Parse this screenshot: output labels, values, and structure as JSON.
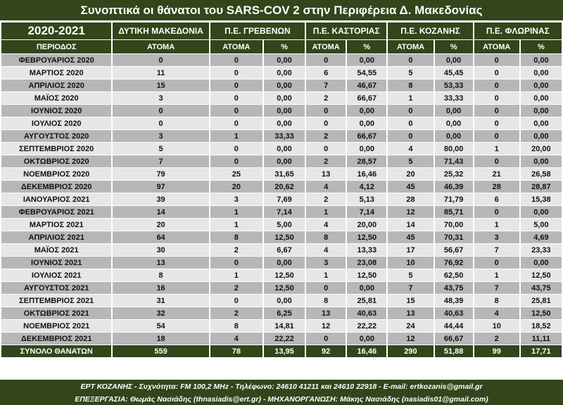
{
  "title": "Συνοπτικά οι θάνατοι του SARS-COV 2 στην Περιφέρεια Δ. Μακεδονίας",
  "header": {
    "year": "2020-2021",
    "regions": [
      "ΔΥΤΙΚΗ ΜΑΚΕΔΟΝΙΑ",
      "Π.Ε. ΓΡΕΒΕΝΩΝ",
      "Π.Ε. ΚΑΣΤΟΡΙΑΣ",
      "Π.Ε. ΚΟΖΑΝΗΣ",
      "Π.Ε. ΦΛΩΡΙΝΑΣ"
    ],
    "period_label": "ΠΕΡΙΟΔΟΣ",
    "people_label": "ΑΤΟΜΑ",
    "percent_label": "%"
  },
  "rows": [
    {
      "period": "ΦΕΒΡΟΥΑΡΙΟΣ 2020",
      "values": [
        "0",
        "0",
        "0,00",
        "0",
        "0,00",
        "0",
        "0,00",
        "0",
        "0,00"
      ]
    },
    {
      "period": "ΜΑΡΤΙΟΣ 2020",
      "values": [
        "11",
        "0",
        "0,00",
        "6",
        "54,55",
        "5",
        "45,45",
        "0",
        "0,00"
      ]
    },
    {
      "period": "ΑΠΡΙΛΙΟΣ 2020",
      "values": [
        "15",
        "0",
        "0,00",
        "7",
        "46,67",
        "8",
        "53,33",
        "0",
        "0,00"
      ]
    },
    {
      "period": "ΜΑΪΟΣ 2020",
      "values": [
        "3",
        "0",
        "0,00",
        "2",
        "66,67",
        "1",
        "33,33",
        "0",
        "0,00"
      ]
    },
    {
      "period": "ΙΟΥΝΙΟΣ 2020",
      "values": [
        "0",
        "0",
        "0,00",
        "0",
        "0,00",
        "0",
        "0,00",
        "0",
        "0,00"
      ]
    },
    {
      "period": "ΙΟΥΛΙΟΣ 2020",
      "values": [
        "0",
        "0",
        "0,00",
        "0",
        "0,00",
        "0",
        "0,00",
        "0",
        "0,00"
      ]
    },
    {
      "period": "ΑΥΓΟΥΣΤΟΣ 2020",
      "values": [
        "3",
        "1",
        "33,33",
        "2",
        "66,67",
        "0",
        "0,00",
        "0",
        "0,00"
      ]
    },
    {
      "period": "ΣΕΠΤΕΜΒΡΙΟΣ 2020",
      "values": [
        "5",
        "0",
        "0,00",
        "0",
        "0,00",
        "4",
        "80,00",
        "1",
        "20,00"
      ]
    },
    {
      "period": "ΟΚΤΩΒΡΙΟΣ 2020",
      "values": [
        "7",
        "0",
        "0,00",
        "2",
        "28,57",
        "5",
        "71,43",
        "0",
        "0,00"
      ]
    },
    {
      "period": "ΝΟΕΜΒΡΙΟΣ 2020",
      "values": [
        "79",
        "25",
        "31,65",
        "13",
        "16,46",
        "20",
        "25,32",
        "21",
        "26,58"
      ]
    },
    {
      "period": "ΔΕΚΕΜΒΡΙΟΣ 2020",
      "values": [
        "97",
        "20",
        "20,62",
        "4",
        "4,12",
        "45",
        "46,39",
        "28",
        "28,87"
      ]
    },
    {
      "period": "ΙΑΝΟΥΑΡΙΟΣ 2021",
      "values": [
        "39",
        "3",
        "7,69",
        "2",
        "5,13",
        "28",
        "71,79",
        "6",
        "15,38"
      ]
    },
    {
      "period": "ΦΕΒΡΟΥΑΡΙΟΣ 2021",
      "values": [
        "14",
        "1",
        "7,14",
        "1",
        "7,14",
        "12",
        "85,71",
        "0",
        "0,00"
      ]
    },
    {
      "period": "ΜΑΡΤΙΟΣ 2021",
      "values": [
        "20",
        "1",
        "5,00",
        "4",
        "20,00",
        "14",
        "70,00",
        "1",
        "5,00"
      ]
    },
    {
      "period": "ΑΠΡΙΛΙΟΣ 2021",
      "values": [
        "64",
        "8",
        "12,50",
        "8",
        "12,50",
        "45",
        "70,31",
        "3",
        "4,69"
      ]
    },
    {
      "period": "ΜΑΪΟΣ 2021",
      "values": [
        "30",
        "2",
        "6,67",
        "4",
        "13,33",
        "17",
        "56,67",
        "7",
        "23,33"
      ]
    },
    {
      "period": "ΙΟΥΝΙΟΣ 2021",
      "values": [
        "13",
        "0",
        "0,00",
        "3",
        "23,08",
        "10",
        "76,92",
        "0",
        "0,00"
      ]
    },
    {
      "period": "ΙΟΥΛΙΟΣ 2021",
      "values": [
        "8",
        "1",
        "12,50",
        "1",
        "12,50",
        "5",
        "62,50",
        "1",
        "12,50"
      ]
    },
    {
      "period": "ΑΥΓΟΥΣΤΟΣ 2021",
      "values": [
        "16",
        "2",
        "12,50",
        "0",
        "0,00",
        "7",
        "43,75",
        "7",
        "43,75"
      ]
    },
    {
      "period": "ΣΕΠΤΕΜΒΡΙΟΣ 2021",
      "values": [
        "31",
        "0",
        "0,00",
        "8",
        "25,81",
        "15",
        "48,39",
        "8",
        "25,81"
      ]
    },
    {
      "period": "ΟΚΤΩΒΡΙΟΣ 2021",
      "values": [
        "32",
        "2",
        "6,25",
        "13",
        "40,63",
        "13",
        "40,63",
        "4",
        "12,50"
      ]
    },
    {
      "period": "ΝΟΕΜΒΡΙΟΣ 2021",
      "values": [
        "54",
        "8",
        "14,81",
        "12",
        "22,22",
        "24",
        "44,44",
        "10",
        "18,52"
      ]
    },
    {
      "period": "ΔΕΚΕΜΒΡΙΟΣ 2021",
      "values": [
        "18",
        "4",
        "22,22",
        "0",
        "0,00",
        "12",
        "66,67",
        "2",
        "11,11"
      ]
    }
  ],
  "total": {
    "period": "ΣΥΝΟΛΟ ΘΑΝΑΤΩΝ",
    "values": [
      "559",
      "78",
      "13,95",
      "92",
      "16,46",
      "290",
      "51,88",
      "99",
      "17,71"
    ]
  },
  "footer": {
    "line1": "ΕΡΤ ΚΟΖΑΝΗΣ - Συχνότητα: FM 100,2 MHz - Τηλέφωνο: 24610 41211 και 24610 22918 - E-mail: ertkozanis@gmail.gr",
    "line2": "ΕΠΕΞΕΡΓΑΣΙΑ: Θωμάς Νασιάδης (thnasiadis@ert.gr) - ΜΗΧΑΝΟΡΓΑΝΩΣΗ: Μάκης Νασιάδης (nasiadis01@gmail.com)"
  },
  "colors": {
    "header_bg": "#33451b",
    "row_odd": "#b7b7b7",
    "row_even": "#e6e6e6"
  }
}
